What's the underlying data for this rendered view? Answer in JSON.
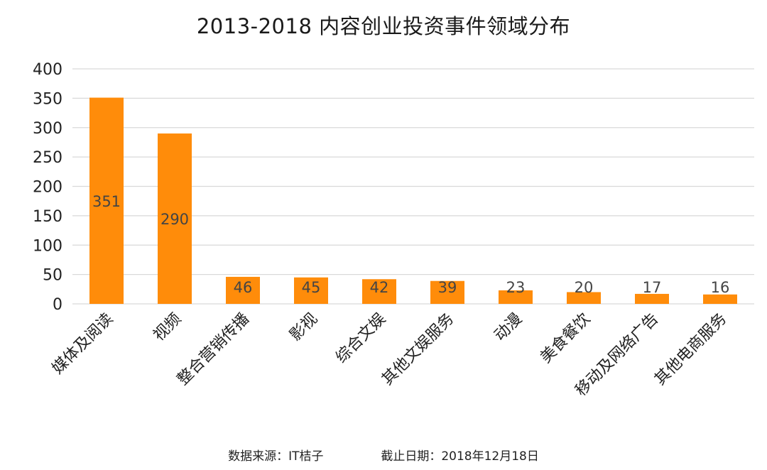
{
  "chart_data": {
    "type": "bar",
    "title": "2013-2018 内容创业投资事件领域分布",
    "categories": [
      "媒体及阅读",
      "视频",
      "整合营销传播",
      "影视",
      "综合文娱",
      "其他文娱服务",
      "动漫",
      "美食餐饮",
      "移动及网络广告",
      "其他电商服务"
    ],
    "values": [
      351,
      290,
      46,
      45,
      42,
      39,
      23,
      20,
      17,
      16
    ],
    "ylim": [
      0,
      400
    ],
    "yticks": [
      0,
      50,
      100,
      150,
      200,
      250,
      300,
      350,
      400
    ],
    "grid": true,
    "bar_color": "#ff8c0a",
    "data_labels": true,
    "legend": false
  },
  "footer": {
    "source": "数据来源：IT桔子",
    "date": "截止日期：2018年12月18日"
  }
}
